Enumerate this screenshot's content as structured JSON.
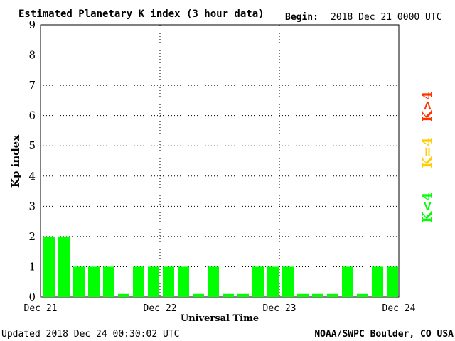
{
  "header": {
    "title": "Estimated Planetary K index (3 hour data)",
    "begin_label": "Begin:",
    "begin_value": "2018 Dec 21 0000 UTC"
  },
  "footer": {
    "updated": "Updated 2018 Dec 24 00:30:02 UTC",
    "source": "NOAA/SWPC Boulder, CO USA"
  },
  "legend": {
    "low": "K<4",
    "mid": "K=4",
    "high": "K>4",
    "colors": {
      "low": "#00ff00",
      "mid": "#ffcc00",
      "high": "#ff3300"
    }
  },
  "chart_data": {
    "type": "bar",
    "title": "Estimated Planetary K index (3 hour data)",
    "xlabel": "Universal Time",
    "ylabel": "Kp index",
    "ylim": [
      0,
      9
    ],
    "yticks": [
      "0",
      "1",
      "2",
      "3",
      "4",
      "5",
      "6",
      "7",
      "8",
      "9"
    ],
    "xticks": [
      "Dec 21",
      "Dec 22",
      "Dec 23",
      "Dec 24"
    ],
    "grid": true,
    "bar_color": "#00ff00",
    "interval_hours": 3,
    "values": [
      2,
      2,
      1,
      1,
      1,
      0,
      1,
      1,
      1,
      1,
      0,
      1,
      0,
      0,
      1,
      1,
      1,
      0,
      0,
      0,
      1,
      0,
      1,
      1
    ]
  }
}
